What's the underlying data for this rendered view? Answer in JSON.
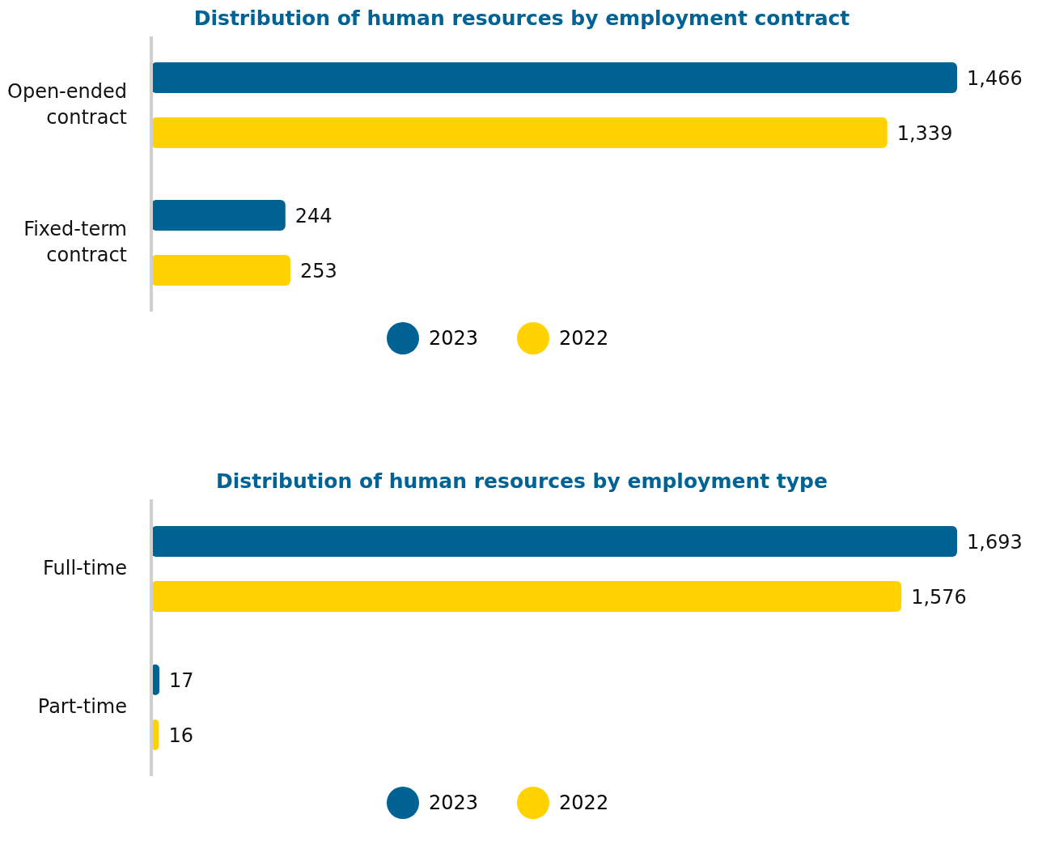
{
  "chart_data": [
    {
      "type": "bar",
      "orientation": "horizontal",
      "title": "Distribution of human resources by employment contract",
      "categories": [
        "Open-ended contract",
        "Fixed-term contract"
      ],
      "series": [
        {
          "name": "2023",
          "color": "#006394",
          "values": [
            1466,
            244
          ],
          "value_labels": [
            "1,466",
            "244"
          ]
        },
        {
          "name": "2022",
          "color": "#ffd200",
          "values": [
            1339,
            253
          ],
          "value_labels": [
            "1,339",
            "253"
          ]
        }
      ],
      "legend": "bottom",
      "tick_labels": "y"
    },
    {
      "type": "bar",
      "orientation": "horizontal",
      "title": "Distribution of human resources by employment type",
      "categories": [
        "Full-time",
        "Part-time"
      ],
      "series": [
        {
          "name": "2023",
          "color": "#006394",
          "values": [
            1693,
            17
          ],
          "value_labels": [
            "1,693",
            "17"
          ]
        },
        {
          "name": "2022",
          "color": "#ffd200",
          "values": [
            1576,
            16
          ],
          "value_labels": [
            "1,576",
            "16"
          ]
        }
      ],
      "legend": "bottom",
      "tick_labels": "y"
    }
  ]
}
